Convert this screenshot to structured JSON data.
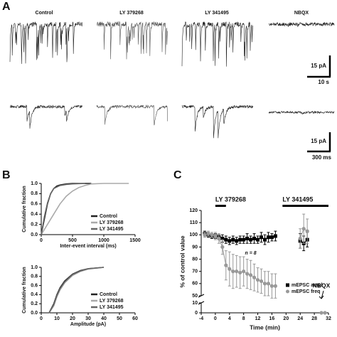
{
  "panel_labels": [
    "A",
    "B",
    "C"
  ],
  "panel_a": {
    "conditions": [
      "Control",
      "LY 379268",
      "LY 341495",
      "NBQX"
    ],
    "scale_bars": [
      {
        "current": "15 pA",
        "time": "10 s"
      },
      {
        "current": "15 pA",
        "time": "300 ms"
      }
    ]
  },
  "chart_data": [
    {
      "type": "line",
      "ylabel": "Cumulative fraction",
      "xlabel": "Inter-event interval (ms)",
      "xlim": [
        0,
        1500
      ],
      "xticks": [
        0,
        500,
        1000,
        1500
      ],
      "ylim": [
        0,
        1
      ],
      "yticks": [
        {
          "value": 0,
          "label": "0.0"
        },
        {
          "value": 0.2,
          "label": "0.2"
        },
        {
          "value": 0.4,
          "label": "0.4"
        },
        {
          "value": 0.6,
          "label": "0.6"
        },
        {
          "value": 0.8,
          "label": "0.8"
        },
        {
          "value": 1,
          "label": "1.0"
        }
      ],
      "legend": "bottom-right",
      "series": [
        {
          "name": "Control",
          "color": "#222222",
          "x": [
            0,
            50,
            100,
            150,
            200,
            250,
            300,
            400,
            500,
            600,
            800
          ],
          "values": [
            0,
            0.3,
            0.6,
            0.8,
            0.9,
            0.95,
            0.97,
            0.99,
            1,
            1,
            1
          ]
        },
        {
          "name": "LY 379268",
          "color": "#aaaaaa",
          "x": [
            0,
            100,
            200,
            300,
            400,
            500,
            600,
            700,
            800,
            1000,
            1400
          ],
          "values": [
            0,
            0.2,
            0.4,
            0.6,
            0.75,
            0.85,
            0.92,
            0.96,
            0.99,
            1,
            1
          ]
        },
        {
          "name": "LY 341495",
          "color": "#666666",
          "x": [
            0,
            50,
            100,
            150,
            200,
            300,
            400,
            500,
            700
          ],
          "values": [
            0,
            0.35,
            0.62,
            0.8,
            0.9,
            0.96,
            0.98,
            0.99,
            1
          ]
        }
      ]
    },
    {
      "type": "line",
      "ylabel": "Cumulative fraction",
      "xlabel": "Amplitude (pA)",
      "xlim": [
        0,
        60
      ],
      "xticks": [
        0,
        10,
        20,
        30,
        40,
        50,
        60
      ],
      "ylim": [
        0,
        1
      ],
      "yticks": [
        {
          "value": 0,
          "label": "0.0"
        },
        {
          "value": 0.2,
          "label": "0.2"
        },
        {
          "value": 0.4,
          "label": "0.4"
        },
        {
          "value": 0.6,
          "label": "0.6"
        },
        {
          "value": 0.8,
          "label": "0.8"
        },
        {
          "value": 1,
          "label": "1.0"
        }
      ],
      "legend": "bottom-right",
      "series": [
        {
          "name": "Control",
          "color": "#222222",
          "x": [
            5,
            8,
            10,
            12,
            15,
            20,
            25,
            30,
            40
          ],
          "values": [
            0,
            0.2,
            0.4,
            0.55,
            0.7,
            0.85,
            0.93,
            0.97,
            1
          ]
        },
        {
          "name": "LY 379268",
          "color": "#aaaaaa",
          "x": [
            5,
            8,
            10,
            12,
            15,
            20,
            25,
            30,
            40
          ],
          "values": [
            0,
            0.15,
            0.35,
            0.5,
            0.66,
            0.82,
            0.91,
            0.96,
            1
          ]
        },
        {
          "name": "LY 341495",
          "color": "#666666",
          "x": [
            5,
            8,
            10,
            12,
            15,
            20,
            25,
            30,
            40
          ],
          "values": [
            0,
            0.18,
            0.38,
            0.53,
            0.68,
            0.84,
            0.92,
            0.97,
            1
          ]
        }
      ]
    },
    {
      "type": "errorline",
      "ylabel": "% of control value",
      "xlabel": "Time (min)",
      "xlim": [
        -4,
        32
      ],
      "xticks": [
        -4,
        0,
        4,
        8,
        12,
        16,
        20,
        24,
        28,
        32
      ],
      "ylim": [
        0,
        120
      ],
      "yticks": [
        0,
        10,
        50,
        60,
        70,
        80,
        90,
        100,
        110,
        120
      ],
      "axis_break": [
        10,
        50
      ],
      "legend": "bottom-right",
      "x": [
        -3,
        -2,
        -1,
        0,
        1,
        2,
        3,
        4,
        5,
        6,
        7,
        8,
        9,
        10,
        11,
        12,
        13,
        14,
        15,
        16,
        17,
        20,
        24,
        25,
        26,
        28,
        30,
        31
      ],
      "series": [
        {
          "name": "mEPSC ampl",
          "color": "#000000",
          "marker": "square",
          "values": [
            101,
            100,
            99,
            99,
            98,
            97,
            96,
            95,
            96,
            95,
            96,
            96,
            97,
            96,
            97,
            96,
            98,
            96,
            98,
            98,
            99,
            null,
            95,
            93,
            96,
            null,
            null,
            null
          ],
          "errors": [
            2,
            2,
            2,
            2,
            2,
            3,
            3,
            3,
            3,
            3,
            3,
            3,
            4,
            3,
            4,
            3,
            4,
            4,
            4,
            3,
            4,
            null,
            6,
            6,
            6,
            null,
            null,
            null
          ]
        },
        {
          "name": "mEPSC freq",
          "color": "#999999",
          "marker": "circle",
          "values": [
            100,
            101,
            100,
            99,
            97,
            90,
            75,
            72,
            70,
            70,
            69,
            70,
            68,
            67,
            65,
            63,
            62,
            60,
            60,
            58,
            58,
            null,
            97,
            105,
            103,
            null,
            0,
            0
          ],
          "errors": [
            2,
            2,
            2,
            3,
            4,
            6,
            12,
            14,
            14,
            13,
            13,
            12,
            12,
            12,
            11,
            10,
            10,
            10,
            10,
            10,
            10,
            null,
            8,
            12,
            10,
            null,
            null,
            null
          ]
        }
      ],
      "spans": [
        {
          "label": "LY 379268",
          "x": [
            0,
            3
          ]
        },
        {
          "label": "LY 341495",
          "x": [
            19,
            32
          ]
        }
      ],
      "note": "n = 8",
      "arrow": {
        "text": "NBQX",
        "x": 30
      }
    }
  ]
}
